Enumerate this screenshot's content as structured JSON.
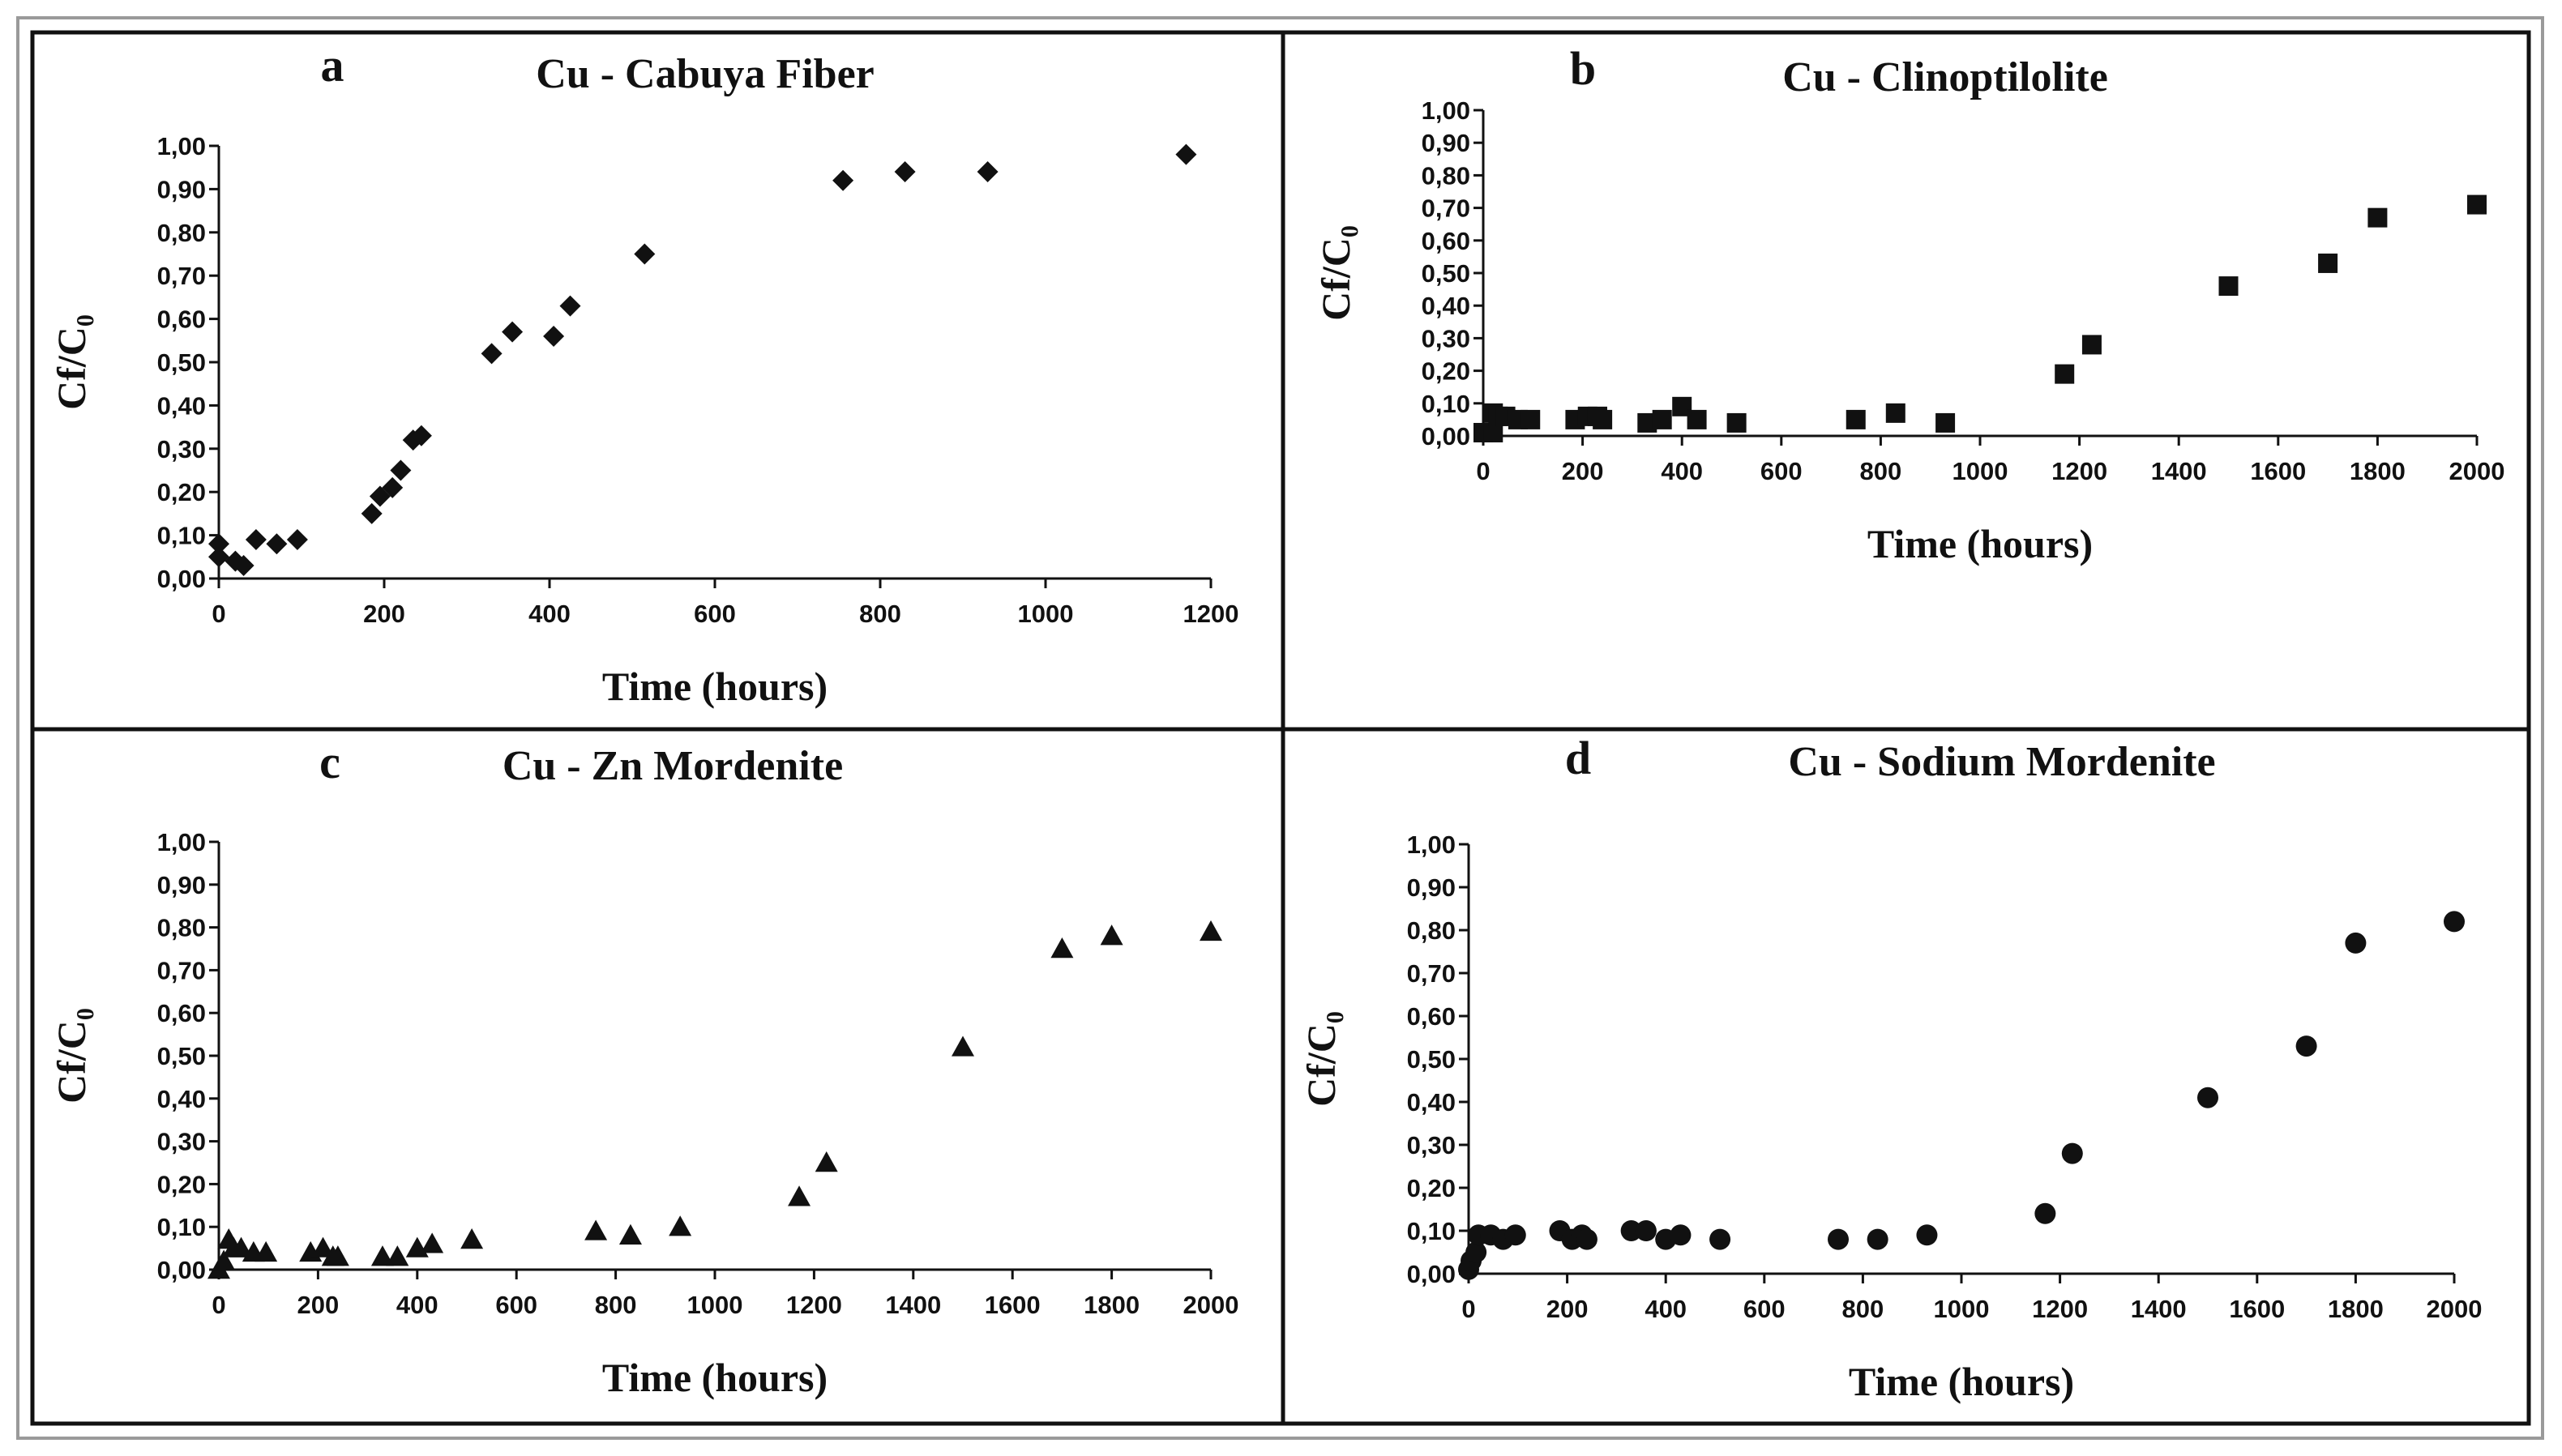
{
  "chart_data": [
    {
      "type": "scatter",
      "panel_label": "a",
      "title": "Cu - Cabuya Fiber",
      "xlabel": "Time (hours)",
      "ylabel": "Cf/C₀",
      "marker": "diamond",
      "xlim": [
        0,
        1200
      ],
      "ylim": [
        0,
        1
      ],
      "xticks": [
        0,
        200,
        400,
        600,
        800,
        1000,
        1200
      ],
      "xtick_labels": [
        "0",
        "200",
        "400",
        "600",
        "800",
        "1000",
        "1200"
      ],
      "yticks": [
        0,
        0.1,
        0.2,
        0.3,
        0.4,
        0.5,
        0.6,
        0.7,
        0.8,
        0.9,
        1.0
      ],
      "ytick_labels": [
        "0,00",
        "0,10",
        "0,20",
        "0,30",
        "0,40",
        "0,50",
        "0,60",
        "0,70",
        "0,80",
        "0,90",
        "1,00"
      ],
      "grid": false,
      "points": [
        [
          0,
          0.05
        ],
        [
          0,
          0.08
        ],
        [
          20,
          0.04
        ],
        [
          30,
          0.03
        ],
        [
          45,
          0.09
        ],
        [
          70,
          0.08
        ],
        [
          95,
          0.09
        ],
        [
          185,
          0.15
        ],
        [
          195,
          0.19
        ],
        [
          210,
          0.21
        ],
        [
          220,
          0.25
        ],
        [
          235,
          0.32
        ],
        [
          245,
          0.33
        ],
        [
          330,
          0.52
        ],
        [
          355,
          0.57
        ],
        [
          405,
          0.56
        ],
        [
          425,
          0.63
        ],
        [
          515,
          0.75
        ],
        [
          755,
          0.92
        ],
        [
          830,
          0.94
        ],
        [
          930,
          0.94
        ],
        [
          1170,
          0.98
        ]
      ]
    },
    {
      "type": "scatter",
      "panel_label": "b",
      "title": "Cu - Clinoptilolite",
      "xlabel": "Time (hours)",
      "ylabel": "Cf/C₀",
      "marker": "square",
      "xlim": [
        0,
        2000
      ],
      "ylim": [
        0,
        1
      ],
      "xticks": [
        0,
        200,
        400,
        600,
        800,
        1000,
        1200,
        1400,
        1600,
        1800,
        2000
      ],
      "xtick_labels": [
        "0",
        "200",
        "400",
        "600",
        "800",
        "1000",
        "1200",
        "1400",
        "1600",
        "1800",
        "2000"
      ],
      "yticks": [
        0,
        0.1,
        0.2,
        0.3,
        0.4,
        0.5,
        0.6,
        0.7,
        0.8,
        0.9,
        1.0
      ],
      "ytick_labels": [
        "0,00",
        "0,10",
        "0,20",
        "0,30",
        "0,40",
        "0,50",
        "0,60",
        "0,70",
        "0,80",
        "0,90",
        "1,00"
      ],
      "grid": false,
      "points": [
        [
          0,
          0.01
        ],
        [
          20,
          0.01
        ],
        [
          20,
          0.07
        ],
        [
          30,
          0.06
        ],
        [
          45,
          0.06
        ],
        [
          70,
          0.05
        ],
        [
          95,
          0.05
        ],
        [
          185,
          0.05
        ],
        [
          210,
          0.06
        ],
        [
          230,
          0.06
        ],
        [
          240,
          0.05
        ],
        [
          330,
          0.04
        ],
        [
          360,
          0.05
        ],
        [
          400,
          0.09
        ],
        [
          430,
          0.05
        ],
        [
          510,
          0.04
        ],
        [
          750,
          0.05
        ],
        [
          830,
          0.07
        ],
        [
          930,
          0.04
        ],
        [
          1170,
          0.19
        ],
        [
          1225,
          0.28
        ],
        [
          1500,
          0.46
        ],
        [
          1700,
          0.53
        ],
        [
          1800,
          0.67
        ],
        [
          2000,
          0.71
        ]
      ]
    },
    {
      "type": "scatter",
      "panel_label": "c",
      "title": "Cu - Zn Mordenite",
      "xlabel": "Time (hours)",
      "ylabel": "Cf/C₀",
      "marker": "triangle",
      "xlim": [
        0,
        2000
      ],
      "ylim": [
        0,
        1
      ],
      "xticks": [
        0,
        200,
        400,
        600,
        800,
        1000,
        1200,
        1400,
        1600,
        1800,
        2000
      ],
      "xtick_labels": [
        "0",
        "200",
        "400",
        "600",
        "800",
        "1000",
        "1200",
        "1400",
        "1600",
        "1800",
        "2000"
      ],
      "yticks": [
        0,
        0.1,
        0.2,
        0.3,
        0.4,
        0.5,
        0.6,
        0.7,
        0.8,
        0.9,
        1.0
      ],
      "ytick_labels": [
        "0,00",
        "0,10",
        "0,20",
        "0,30",
        "0,40",
        "0,50",
        "0,60",
        "0,70",
        "0,80",
        "0,90",
        "1,00"
      ],
      "grid": false,
      "points": [
        [
          0,
          0.0
        ],
        [
          10,
          0.02
        ],
        [
          20,
          0.07
        ],
        [
          30,
          0.05
        ],
        [
          45,
          0.05
        ],
        [
          70,
          0.04
        ],
        [
          95,
          0.04
        ],
        [
          185,
          0.04
        ],
        [
          210,
          0.05
        ],
        [
          230,
          0.03
        ],
        [
          240,
          0.03
        ],
        [
          330,
          0.03
        ],
        [
          360,
          0.03
        ],
        [
          400,
          0.05
        ],
        [
          430,
          0.06
        ],
        [
          510,
          0.07
        ],
        [
          760,
          0.09
        ],
        [
          830,
          0.08
        ],
        [
          930,
          0.1
        ],
        [
          1170,
          0.17
        ],
        [
          1225,
          0.25
        ],
        [
          1500,
          0.52
        ],
        [
          1700,
          0.75
        ],
        [
          1800,
          0.78
        ],
        [
          2000,
          0.79
        ]
      ]
    },
    {
      "type": "scatter",
      "panel_label": "d",
      "title": "Cu - Sodium Mordenite",
      "xlabel": "Time (hours)",
      "ylabel": "Cf/C₀",
      "marker": "circle",
      "xlim": [
        0,
        2000
      ],
      "ylim": [
        0,
        1
      ],
      "xticks": [
        0,
        200,
        400,
        600,
        800,
        1000,
        1200,
        1400,
        1600,
        1800,
        2000
      ],
      "xtick_labels": [
        "0",
        "200",
        "400",
        "600",
        "800",
        "1000",
        "1200",
        "1400",
        "1600",
        "1800",
        "2000"
      ],
      "yticks": [
        0,
        0.1,
        0.2,
        0.3,
        0.4,
        0.5,
        0.6,
        0.7,
        0.8,
        0.9,
        1.0
      ],
      "ytick_labels": [
        "0,00",
        "0,10",
        "0,20",
        "0,30",
        "0,40",
        "0,50",
        "0,60",
        "0,70",
        "0,80",
        "0,90",
        "1,00"
      ],
      "grid": false,
      "points": [
        [
          0,
          0.01
        ],
        [
          5,
          0.03
        ],
        [
          15,
          0.05
        ],
        [
          20,
          0.09
        ],
        [
          45,
          0.09
        ],
        [
          70,
          0.08
        ],
        [
          95,
          0.09
        ],
        [
          185,
          0.1
        ],
        [
          210,
          0.08
        ],
        [
          230,
          0.09
        ],
        [
          240,
          0.08
        ],
        [
          330,
          0.1
        ],
        [
          360,
          0.1
        ],
        [
          400,
          0.08
        ],
        [
          430,
          0.09
        ],
        [
          510,
          0.08
        ],
        [
          750,
          0.08
        ],
        [
          830,
          0.08
        ],
        [
          930,
          0.09
        ],
        [
          1170,
          0.14
        ],
        [
          1225,
          0.28
        ],
        [
          1500,
          0.41
        ],
        [
          1700,
          0.53
        ],
        [
          1800,
          0.77
        ],
        [
          2000,
          0.82
        ]
      ]
    }
  ]
}
